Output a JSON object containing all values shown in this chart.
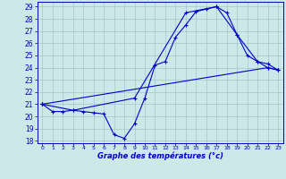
{
  "title": "Graphe des températures (°c)",
  "bg_color": "#cce8e8",
  "grid_color": "#aacccc",
  "line_color": "#0000cc",
  "spine_color": "#0000cc",
  "ylim": [
    18,
    29
  ],
  "xlim": [
    0,
    23
  ],
  "yticks": [
    18,
    19,
    20,
    21,
    22,
    23,
    24,
    25,
    26,
    27,
    28,
    29
  ],
  "xticks": [
    0,
    1,
    2,
    3,
    4,
    5,
    6,
    7,
    8,
    9,
    10,
    11,
    12,
    13,
    14,
    15,
    16,
    17,
    18,
    19,
    20,
    21,
    22,
    23
  ],
  "series": [
    {
      "x": [
        0,
        1,
        2,
        3,
        4,
        5,
        6,
        7,
        8,
        9,
        10,
        11,
        12,
        13,
        14,
        15,
        16,
        17,
        18,
        19,
        20,
        21,
        22,
        23
      ],
      "y": [
        21.0,
        20.4,
        20.4,
        20.5,
        20.4,
        20.3,
        20.2,
        18.5,
        18.2,
        19.4,
        21.5,
        24.2,
        24.5,
        26.5,
        27.5,
        28.6,
        28.8,
        29.0,
        28.5,
        26.7,
        25.0,
        24.5,
        24.0,
        23.8
      ]
    },
    {
      "x": [
        0,
        3,
        9,
        14,
        17,
        19,
        21,
        22,
        23
      ],
      "y": [
        21.0,
        20.5,
        21.5,
        28.5,
        29.0,
        26.7,
        24.5,
        24.3,
        23.8
      ]
    },
    {
      "x": [
        0,
        22,
        23
      ],
      "y": [
        21.0,
        24.0,
        23.8
      ]
    }
  ]
}
